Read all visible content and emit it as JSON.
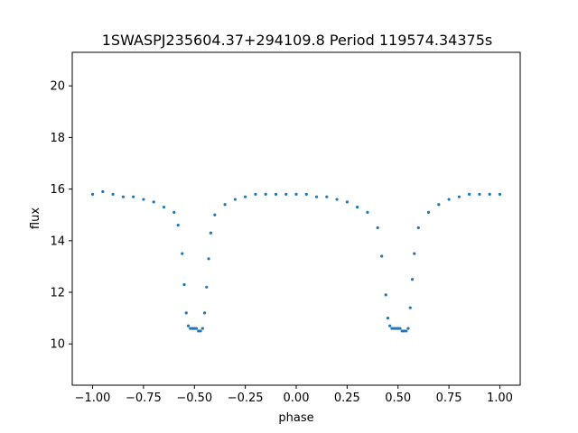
{
  "chart_data": {
    "type": "scatter",
    "title": "1SWASPJ235604.37+294109.8 Period 119574.34375s",
    "xlabel": "phase",
    "ylabel": "flux",
    "xlim": [
      -1.1,
      1.1
    ],
    "ylim": [
      8.4,
      21.3
    ],
    "xticks": [
      -1.0,
      -0.75,
      -0.5,
      -0.25,
      0.0,
      0.25,
      0.5,
      0.75,
      1.0
    ],
    "xtick_labels": [
      "−1.00",
      "−0.75",
      "−0.50",
      "−0.25",
      "0.00",
      "0.25",
      "0.50",
      "0.75",
      "1.00"
    ],
    "yticks": [
      10,
      12,
      14,
      16,
      18,
      20
    ],
    "ytick_labels": [
      "10",
      "12",
      "14",
      "16",
      "18",
      "20"
    ],
    "grid": false,
    "marker_color": "#1f77b4",
    "series": [
      {
        "x": [
          -1.0,
          -0.95,
          -0.9,
          -0.85,
          -0.8,
          -0.75,
          -0.7,
          -0.65,
          -0.6,
          -0.58,
          -0.56,
          -0.55,
          -0.54,
          -0.53,
          -0.52,
          -0.51,
          -0.5,
          -0.49,
          -0.48,
          -0.47,
          -0.46,
          -0.45,
          -0.44,
          -0.43,
          -0.42,
          -0.4,
          -0.35,
          -0.3,
          -0.25,
          -0.2,
          -0.15,
          -0.1,
          -0.05,
          0.0,
          0.05,
          0.1,
          0.15,
          0.2,
          0.25,
          0.3,
          0.35,
          0.4,
          0.42,
          0.44,
          0.45,
          0.46,
          0.47,
          0.48,
          0.49,
          0.5,
          0.51,
          0.52,
          0.53,
          0.54,
          0.55,
          0.56,
          0.57,
          0.58,
          0.6,
          0.65,
          0.7,
          0.75,
          0.8,
          0.85,
          0.9,
          0.95,
          1.0
        ],
        "y": [
          15.8,
          15.9,
          15.8,
          15.7,
          15.7,
          15.6,
          15.5,
          15.3,
          15.1,
          14.6,
          13.5,
          12.3,
          11.2,
          10.7,
          10.6,
          10.6,
          10.6,
          10.6,
          10.5,
          10.5,
          10.6,
          11.2,
          12.2,
          13.3,
          14.3,
          15.0,
          15.4,
          15.6,
          15.7,
          15.8,
          15.8,
          15.8,
          15.8,
          15.8,
          15.8,
          15.7,
          15.7,
          15.6,
          15.5,
          15.3,
          15.1,
          14.5,
          13.4,
          11.9,
          11.0,
          10.7,
          10.6,
          10.6,
          10.6,
          10.6,
          10.6,
          10.5,
          10.5,
          10.5,
          10.6,
          11.4,
          12.5,
          13.5,
          14.5,
          15.1,
          15.4,
          15.6,
          15.7,
          15.8,
          15.8,
          15.8,
          15.8
        ]
      }
    ]
  }
}
